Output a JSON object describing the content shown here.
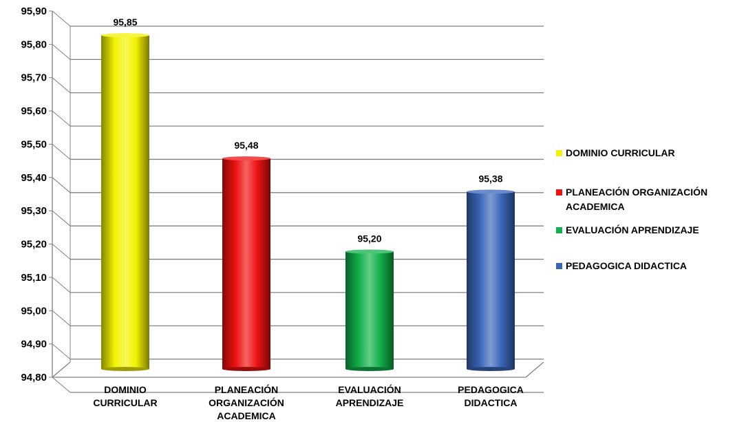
{
  "chart_data": {
    "type": "bar",
    "categories": [
      [
        "DOMINIO",
        "CURRICULAR"
      ],
      [
        "PLANEACIÓN",
        "ORGANIZACIÓN",
        "ACADEMICA"
      ],
      [
        "EVALUACIÓN",
        "APRENDIZAJE"
      ],
      [
        "PEDAGOGICA",
        "DIDACTICA"
      ]
    ],
    "values": [
      95.85,
      95.48,
      95.2,
      95.38
    ],
    "value_labels": [
      "95,85",
      "95,48",
      "95,20",
      "95,38"
    ],
    "colors": [
      "#f2f200",
      "#ee1111",
      "#11b04a",
      "#3a66b8"
    ],
    "ylim": [
      94.8,
      95.9
    ],
    "yticks": [
      94.8,
      94.9,
      95.0,
      95.1,
      95.2,
      95.3,
      95.4,
      95.5,
      95.6,
      95.7,
      95.8,
      95.9
    ],
    "ytick_labels": [
      "94,80",
      "94,90",
      "95,00",
      "95,10",
      "95,20",
      "95,30",
      "95,40",
      "95,50",
      "95,60",
      "95,70",
      "95,80",
      "95,90"
    ],
    "grid": true,
    "legend_position": "right",
    "legend": [
      {
        "label": "DOMINIO CURRICULAR",
        "color": "#f2f200"
      },
      {
        "label": "PLANEACIÓN ORGANIZACIÓN ACADEMICA",
        "color": "#ee1111"
      },
      {
        "label": "EVALUACIÓN APRENDIZAJE",
        "color": "#11b04a"
      },
      {
        "label": "PEDAGOGICA DIDACTICA",
        "color": "#3a66b8"
      }
    ]
  }
}
